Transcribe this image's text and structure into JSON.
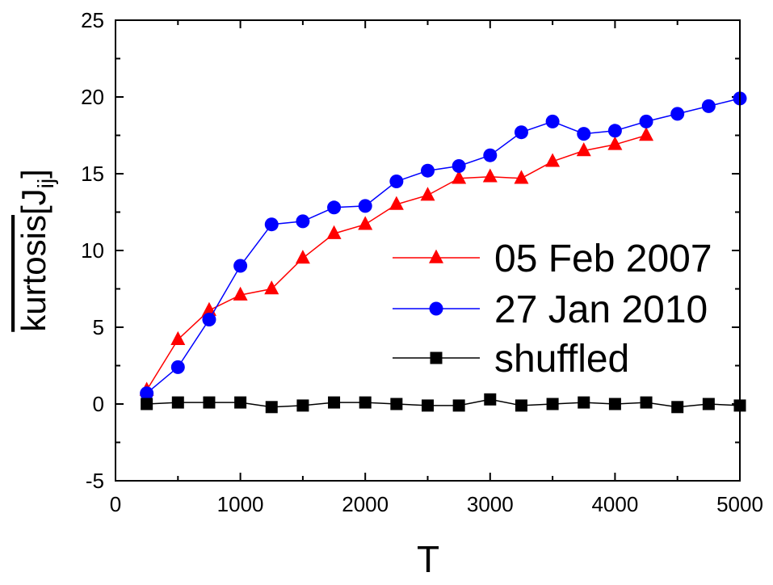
{
  "chart_data": {
    "type": "line",
    "xlabel": "T",
    "ylabel": {
      "overline_text": "kurtosis",
      "text_open": "[J",
      "subscript": "ij",
      "text_close": "]"
    },
    "xlim": [
      0,
      5000
    ],
    "ylim": [
      -5,
      25
    ],
    "xticks": [
      0,
      1000,
      2000,
      3000,
      4000,
      5000
    ],
    "yticks": [
      -5,
      0,
      5,
      10,
      15,
      20,
      25
    ],
    "xtick_labels": [
      "0",
      "1000",
      "2000",
      "3000",
      "4000",
      "5000"
    ],
    "ytick_labels": [
      "-5",
      "0",
      "5",
      "10",
      "15",
      "20",
      "25"
    ],
    "grid": false,
    "legend_position": "right",
    "series": [
      {
        "name": "05 Feb 2007",
        "color": "#ff0000",
        "marker": "triangle",
        "x": [
          250,
          500,
          750,
          1000,
          1250,
          1500,
          1750,
          2000,
          2250,
          2500,
          2750,
          3000,
          3250,
          3500,
          3750,
          4000,
          4250
        ],
        "y": [
          0.9,
          4.2,
          6.1,
          7.1,
          7.5,
          9.5,
          11.1,
          11.7,
          13.0,
          13.6,
          14.7,
          14.8,
          14.7,
          15.8,
          16.5,
          16.9,
          17.5
        ]
      },
      {
        "name": "27 Jan 2010",
        "color": "#0000ff",
        "marker": "circle",
        "x": [
          250,
          500,
          750,
          1000,
          1250,
          1500,
          1750,
          2000,
          2250,
          2500,
          2750,
          3000,
          3250,
          3500,
          3750,
          4000,
          4250,
          4500,
          4750,
          5000
        ],
        "y": [
          0.7,
          2.4,
          5.5,
          9.0,
          11.7,
          11.9,
          12.8,
          12.9,
          14.5,
          15.2,
          15.5,
          16.2,
          17.7,
          18.4,
          17.6,
          17.8,
          18.4,
          18.9,
          19.4,
          19.9
        ]
      },
      {
        "name": "shuffled",
        "color": "#000000",
        "marker": "square",
        "x": [
          250,
          500,
          750,
          1000,
          1250,
          1500,
          1750,
          2000,
          2250,
          2500,
          2750,
          3000,
          3250,
          3500,
          3750,
          4000,
          4250,
          4500,
          4750,
          5000
        ],
        "y": [
          0.0,
          0.1,
          0.1,
          0.1,
          -0.2,
          -0.1,
          0.1,
          0.1,
          0.0,
          -0.1,
          -0.1,
          0.3,
          -0.1,
          0.0,
          0.1,
          0.0,
          0.1,
          -0.2,
          0.0,
          -0.1
        ]
      }
    ]
  }
}
